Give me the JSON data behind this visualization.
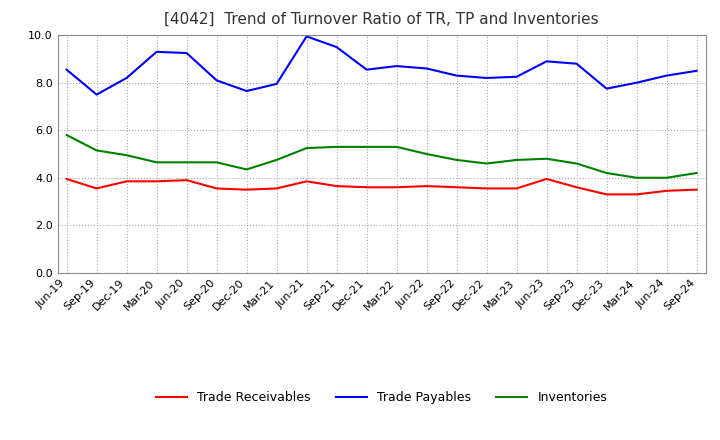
{
  "title": "[4042]  Trend of Turnover Ratio of TR, TP and Inventories",
  "ylim": [
    0.0,
    10.0
  ],
  "yticks": [
    0.0,
    2.0,
    4.0,
    6.0,
    8.0,
    10.0
  ],
  "labels": [
    "Jun-19",
    "Sep-19",
    "Dec-19",
    "Mar-20",
    "Jun-20",
    "Sep-20",
    "Dec-20",
    "Mar-21",
    "Jun-21",
    "Sep-21",
    "Dec-21",
    "Mar-22",
    "Jun-22",
    "Sep-22",
    "Dec-22",
    "Mar-23",
    "Jun-23",
    "Sep-23",
    "Dec-23",
    "Mar-24",
    "Jun-24",
    "Sep-24"
  ],
  "trade_receivables": [
    3.95,
    3.55,
    3.85,
    3.85,
    3.9,
    3.55,
    3.5,
    3.55,
    3.85,
    3.65,
    3.6,
    3.6,
    3.65,
    3.6,
    3.55,
    3.55,
    3.95,
    3.6,
    3.3,
    3.3,
    3.45,
    3.5
  ],
  "trade_payables": [
    8.55,
    7.5,
    8.2,
    9.3,
    9.25,
    8.1,
    7.65,
    7.95,
    9.95,
    9.5,
    8.55,
    8.7,
    8.6,
    8.3,
    8.2,
    8.25,
    8.9,
    8.8,
    7.75,
    8.0,
    8.3,
    8.5
  ],
  "inventories": [
    5.8,
    5.15,
    4.95,
    4.65,
    4.65,
    4.65,
    4.35,
    4.75,
    5.25,
    5.3,
    5.3,
    5.3,
    5.0,
    4.75,
    4.6,
    4.75,
    4.8,
    4.6,
    4.2,
    4.0,
    4.0,
    4.2
  ],
  "tr_color": "#ff0000",
  "tp_color": "#0000ff",
  "inv_color": "#008000",
  "legend_labels": [
    "Trade Receivables",
    "Trade Payables",
    "Inventories"
  ],
  "grid_color": "#aaaaaa",
  "background_color": "#ffffff",
  "title_fontsize": 11,
  "tick_fontsize": 8,
  "legend_fontsize": 9
}
